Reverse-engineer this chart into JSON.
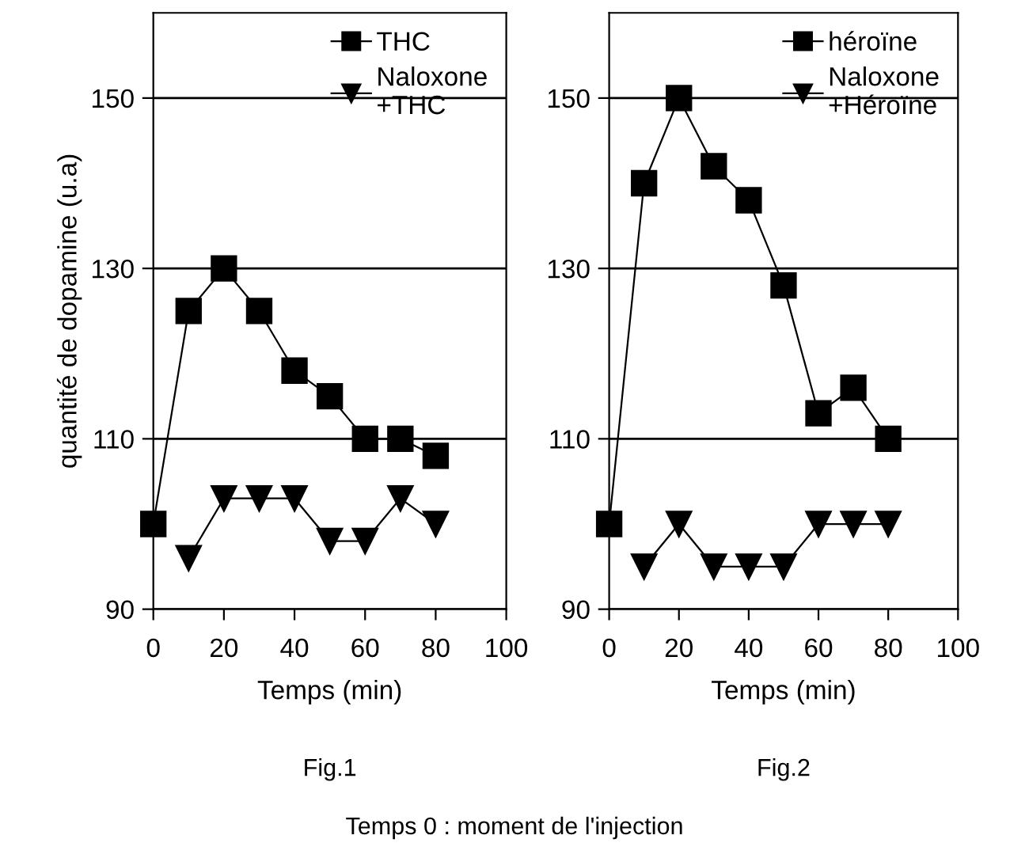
{
  "chart_data": [
    {
      "type": "line",
      "xlabel": "Temps (min)",
      "ylabel": "quantité de dopamine (u.a)",
      "x": [
        0,
        10,
        20,
        30,
        40,
        50,
        60,
        70,
        80
      ],
      "xlim": [
        0,
        100
      ],
      "xticks": [
        0,
        20,
        40,
        60,
        80,
        100
      ],
      "ylim": [
        90,
        160
      ],
      "yticks": [
        90,
        110,
        130,
        150
      ],
      "grid": "y",
      "legend": "top right",
      "line_style": "solid",
      "series": [
        {
          "name": "THC",
          "color": "#000000",
          "marker": "square",
          "values": [
            100,
            125,
            130,
            125,
            118,
            115,
            110,
            110,
            108
          ]
        },
        {
          "name": "Naloxone\n+THC",
          "color": "#000000",
          "marker": "triangle",
          "values": [
            null,
            96,
            103,
            103,
            103,
            98,
            98,
            103,
            100
          ]
        }
      ],
      "annotations": [
        "Fig.1"
      ]
    },
    {
      "type": "line",
      "xlabel": "Temps (min)",
      "x": [
        0,
        10,
        20,
        30,
        40,
        50,
        60,
        70,
        80
      ],
      "xlim": [
        0,
        100
      ],
      "xticks": [
        0,
        20,
        40,
        60,
        80,
        100
      ],
      "ylim": [
        90,
        160
      ],
      "yticks": [
        90,
        110,
        130,
        150
      ],
      "grid": "y",
      "legend": "top right",
      "line_style": "solid",
      "series": [
        {
          "name": "héroïne",
          "color": "#000000",
          "marker": "square",
          "values": [
            100,
            140,
            150,
            142,
            138,
            128,
            113,
            116,
            110
          ]
        },
        {
          "name": "Naloxone\n+Héroïne",
          "color": "#000000",
          "marker": "triangle",
          "values": [
            null,
            95,
            100,
            95,
            95,
            95,
            100,
            100,
            100
          ]
        }
      ],
      "annotations": [
        "Fig.2",
        "Temps 0 : moment de l'injection"
      ]
    }
  ]
}
